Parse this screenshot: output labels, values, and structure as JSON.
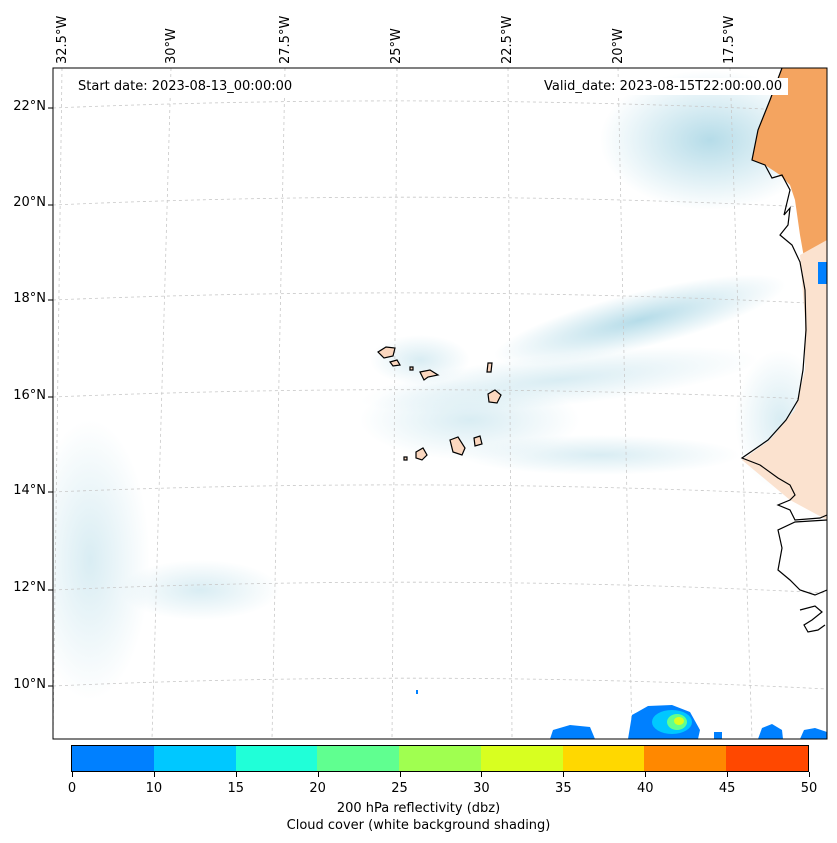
{
  "map": {
    "start_date": "Start date: 2023-08-13_00:00:00",
    "valid_date": "Valid_date: 2023-08-15T22:00:00.00",
    "lon_labels": [
      "32.5°W",
      "30°W",
      "27.5°W",
      "25°W",
      "22.5°W",
      "20°W",
      "17.5°W"
    ],
    "lat_labels": [
      "22°N",
      "20°N",
      "18°N",
      "16°N",
      "14°N",
      "12°N",
      "10°N"
    ],
    "land_color": "#f4a460",
    "cloud_color": "#add8e6",
    "reflectivity_color": "#0080ff"
  },
  "colorbar": {
    "ticks": [
      "0",
      "10",
      "15",
      "20",
      "25",
      "30",
      "35",
      "40",
      "45",
      "50"
    ],
    "colors": [
      "#0080ff",
      "#00c8ff",
      "#20ffd8",
      "#60ff90",
      "#a0ff50",
      "#d8ff20",
      "#ffd800",
      "#ff8800",
      "#ff4800"
    ],
    "label_line1": "200 hPa reflectivity (dbz)",
    "label_line2": "Cloud cover (white background shading)"
  }
}
